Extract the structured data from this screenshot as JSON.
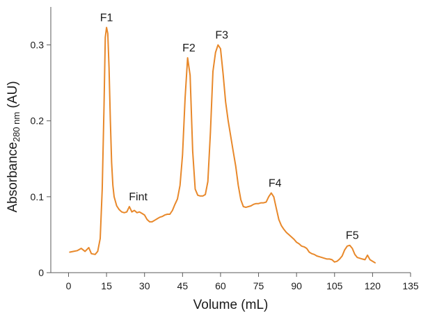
{
  "chart_data": {
    "type": "line",
    "title": "",
    "xlabel": "Volume (mL)",
    "ylabel": {
      "main": "Absorbance",
      "subscript": "280 nm",
      "unit": " (AU)"
    },
    "xlim": [
      -7,
      135
    ],
    "ylim": [
      0,
      0.35
    ],
    "xticks": [
      0,
      15,
      30,
      45,
      60,
      75,
      90,
      105,
      120,
      135
    ],
    "xtick_labels": [
      "0",
      "15",
      "30",
      "45",
      "60",
      "75",
      "90",
      "105",
      "120",
      "135"
    ],
    "yticks": [
      0,
      0.1,
      0.2,
      0.3
    ],
    "ytick_labels": [
      "0",
      "0.1",
      "0.2",
      "0.3"
    ],
    "grid": false,
    "line_color": "#E8882A",
    "series": [
      {
        "x": [
          0.5,
          2,
          3.5,
          5,
          6.5,
          8,
          9,
          10.5,
          11.5,
          12.5,
          13.3,
          14,
          14.5,
          15,
          15.5,
          16,
          16.5,
          17,
          17.5,
          18,
          19,
          20,
          21,
          22,
          23,
          24,
          25,
          26,
          27,
          28,
          29,
          30,
          31,
          32,
          33,
          34,
          35,
          36,
          37,
          38,
          39,
          40,
          41,
          42,
          43,
          44,
          45,
          46,
          47,
          48,
          49,
          50,
          51,
          52,
          53,
          54,
          55,
          56,
          57,
          58,
          59,
          60,
          61,
          62,
          63,
          64,
          65,
          66,
          67,
          68,
          69,
          70,
          71,
          72,
          73,
          74,
          75,
          76,
          77,
          78,
          79,
          80,
          81,
          82,
          83,
          84,
          85,
          86,
          87,
          88,
          89,
          90,
          91,
          92,
          93,
          94,
          95,
          96,
          97,
          98,
          99,
          100,
          101,
          102,
          103,
          104,
          105,
          106,
          107,
          108,
          109,
          110,
          111,
          112,
          113,
          114,
          115,
          116,
          117,
          118,
          119,
          120,
          121
        ],
        "y": [
          0.027,
          0.028,
          0.029,
          0.032,
          0.028,
          0.033,
          0.025,
          0.024,
          0.028,
          0.045,
          0.11,
          0.22,
          0.31,
          0.323,
          0.315,
          0.27,
          0.2,
          0.145,
          0.115,
          0.1,
          0.088,
          0.083,
          0.08,
          0.079,
          0.08,
          0.087,
          0.08,
          0.082,
          0.079,
          0.08,
          0.078,
          0.076,
          0.07,
          0.067,
          0.067,
          0.069,
          0.071,
          0.073,
          0.074,
          0.076,
          0.077,
          0.077,
          0.082,
          0.09,
          0.097,
          0.115,
          0.155,
          0.23,
          0.283,
          0.26,
          0.16,
          0.11,
          0.102,
          0.101,
          0.101,
          0.103,
          0.12,
          0.185,
          0.265,
          0.29,
          0.3,
          0.295,
          0.262,
          0.225,
          0.2,
          0.18,
          0.16,
          0.14,
          0.115,
          0.096,
          0.087,
          0.086,
          0.087,
          0.088,
          0.09,
          0.091,
          0.091,
          0.092,
          0.092,
          0.093,
          0.1,
          0.105,
          0.1,
          0.085,
          0.07,
          0.062,
          0.057,
          0.053,
          0.05,
          0.047,
          0.044,
          0.04,
          0.038,
          0.035,
          0.034,
          0.032,
          0.027,
          0.025,
          0.024,
          0.022,
          0.021,
          0.02,
          0.019,
          0.018,
          0.018,
          0.017,
          0.014,
          0.015,
          0.018,
          0.022,
          0.03,
          0.035,
          0.036,
          0.032,
          0.024,
          0.02,
          0.019,
          0.018,
          0.017,
          0.023,
          0.017,
          0.015,
          0.013
        ]
      }
    ],
    "annotations": [
      {
        "text": "F1",
        "x": 15,
        "y": 0.323
      },
      {
        "text": "Fint",
        "x": 27.5,
        "y": 0.087
      },
      {
        "text": "F2",
        "x": 47.5,
        "y": 0.283
      },
      {
        "text": "F3",
        "x": 60.5,
        "y": 0.3
      },
      {
        "text": "F4",
        "x": 81.5,
        "y": 0.105
      },
      {
        "text": "F5",
        "x": 112,
        "y": 0.036
      }
    ]
  }
}
